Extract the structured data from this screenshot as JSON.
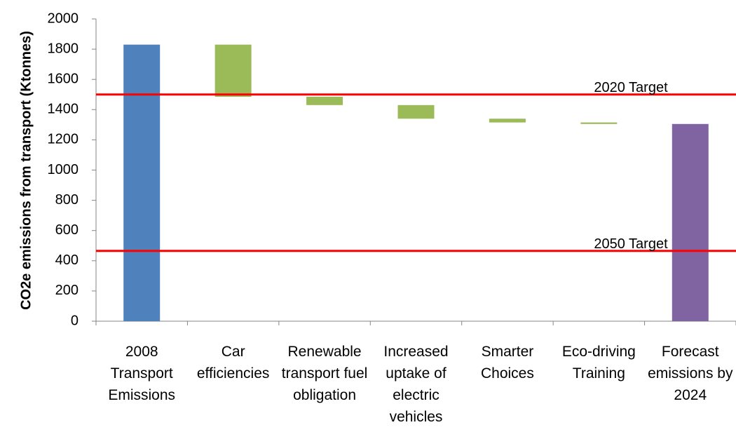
{
  "chart_data": {
    "type": "waterfall",
    "ylabel": "CO2e emissions from transport (Ktonnes)",
    "categories": [
      "2008 Transport Emissions",
      "Car efficiencies",
      "Renewable transport fuel obligation",
      "Increased uptake of electric vehicles",
      "Smarter Choices",
      "Eco-driving Training",
      "Forecast emissions by 2024"
    ],
    "values": [
      1830,
      -345,
      -55,
      -90,
      -25,
      -10,
      1305
    ],
    "measures": [
      "absolute",
      "relative",
      "relative",
      "relative",
      "relative",
      "relative",
      "total"
    ],
    "colors": [
      "#4f81bd",
      "#9bbb59",
      "#9bbb59",
      "#9bbb59",
      "#9bbb59",
      "#9bbb59",
      "#8064a2"
    ],
    "ylim": [
      0,
      2000
    ],
    "yticks": [
      0,
      200,
      400,
      600,
      800,
      1000,
      1200,
      1400,
      1600,
      1800,
      2000
    ],
    "reference_lines": [
      {
        "label": "2020 Target",
        "value": 1500,
        "color": "#ff0000"
      },
      {
        "label": "2050 Target",
        "value": 465,
        "color": "#ff0000"
      }
    ]
  }
}
